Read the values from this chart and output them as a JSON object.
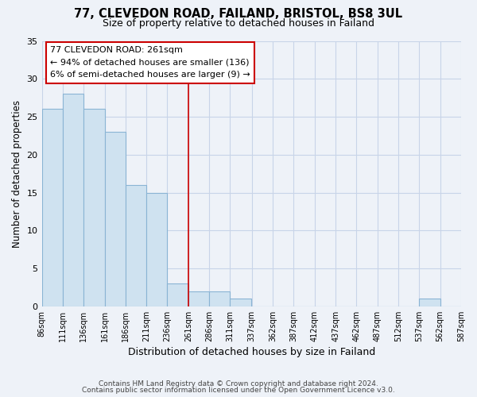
{
  "title": "77, CLEVEDON ROAD, FAILAND, BRISTOL, BS8 3UL",
  "subtitle": "Size of property relative to detached houses in Failand",
  "xlabel": "Distribution of detached houses by size in Failand",
  "ylabel": "Number of detached properties",
  "bar_color": "#cfe2f0",
  "bar_edge_color": "#8ab4d4",
  "background_color": "#eef2f8",
  "grid_color": "#c8d4e8",
  "bins_left": [
    86,
    111,
    136,
    161,
    186,
    211,
    236,
    261,
    286,
    311,
    337,
    362,
    387,
    412,
    437,
    462,
    487,
    512,
    537,
    562
  ],
  "bin_width": 25,
  "counts": [
    26,
    28,
    26,
    23,
    16,
    15,
    3,
    2,
    2,
    1,
    0,
    0,
    0,
    0,
    0,
    0,
    0,
    0,
    1,
    0
  ],
  "xtick_labels": [
    "86sqm",
    "111sqm",
    "136sqm",
    "161sqm",
    "186sqm",
    "211sqm",
    "236sqm",
    "261sqm",
    "286sqm",
    "311sqm",
    "337sqm",
    "362sqm",
    "387sqm",
    "412sqm",
    "437sqm",
    "462sqm",
    "487sqm",
    "512sqm",
    "537sqm",
    "562sqm",
    "587sqm"
  ],
  "xtick_positions": [
    86,
    111,
    136,
    161,
    186,
    211,
    236,
    261,
    286,
    311,
    337,
    362,
    387,
    412,
    437,
    462,
    487,
    512,
    537,
    562,
    587
  ],
  "red_line_x": 261,
  "annotation_title": "77 CLEVEDON ROAD: 261sqm",
  "annotation_line1": "← 94% of detached houses are smaller (136)",
  "annotation_line2": "6% of semi-detached houses are larger (9) →",
  "annotation_box_color": "#ffffff",
  "annotation_box_edge": "#cc0000",
  "red_line_color": "#cc0000",
  "xlim": [
    86,
    587
  ],
  "ylim": [
    0,
    35
  ],
  "yticks": [
    0,
    5,
    10,
    15,
    20,
    25,
    30,
    35
  ],
  "footer_line1": "Contains HM Land Registry data © Crown copyright and database right 2024.",
  "footer_line2": "Contains public sector information licensed under the Open Government Licence v3.0."
}
